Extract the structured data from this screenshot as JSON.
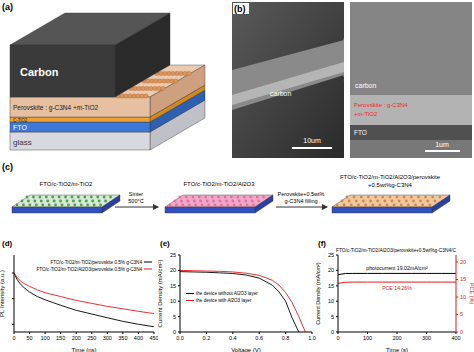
{
  "panels": {
    "a": {
      "label": "(a)",
      "layers": [
        "Carbon",
        "Perovskite : g-C3N4 +m-TiO2",
        "C-TiO2",
        "FTO",
        "glass"
      ]
    },
    "b": {
      "label": "(b)",
      "left": {
        "labels": [
          "carbon"
        ],
        "scale": "10um"
      },
      "right": {
        "labels": [
          "carbon",
          "Perovskite : g-C3N4",
          "+m-TiO2",
          "FTO"
        ],
        "scale": "1um"
      }
    },
    "c": {
      "label": "(c)",
      "steps": [
        "FTO/c-TiO2/m-TiO2",
        "FTO/c-TiO2/m-TiO2/Al2O3",
        "FTO/c-TiO2/m-TiO2/Al2O3/perovskite+0.5wt%g-C3N4"
      ],
      "arrows": [
        "Sinter 500°C",
        "Perovskite+0.5wt% g-C3N4 filling"
      ]
    }
  },
  "chart_data": [
    {
      "type": "line",
      "xlabel": "Time (ns)",
      "ylabel": "PL Intensity (a.u.)",
      "annotations": [
        "(d)"
      ],
      "log": "y",
      "tick_labels": "x",
      "legend": "upper right",
      "x": [
        0,
        10,
        20,
        30,
        50,
        75,
        100,
        150,
        200,
        250,
        300,
        350,
        400,
        450
      ],
      "xlim": [
        0,
        450
      ],
      "xticks": [
        0,
        50,
        100,
        150,
        200,
        250,
        300,
        350,
        400,
        450
      ],
      "ylim": [
        0.005,
        5
      ],
      "yticks": [
        0.01,
        0.1,
        1
      ],
      "series": [
        {
          "name": "FTO/c-TiO2/m-TiO2/perovskite:0.5% g-C3N4",
          "color": "#000000",
          "values": [
            1,
            0.55,
            0.38,
            0.28,
            0.18,
            0.12,
            0.09,
            0.055,
            0.035,
            0.025,
            0.018,
            0.013,
            0.01,
            0.008
          ]
        },
        {
          "name": "FTO/c-TiO2/m-TiO2/Al2O3/perovskite:0.5% g-C3N4",
          "color": "#e41a1c",
          "values": [
            1,
            0.65,
            0.5,
            0.4,
            0.3,
            0.22,
            0.17,
            0.12,
            0.085,
            0.065,
            0.05,
            0.04,
            0.032,
            0.026
          ]
        }
      ]
    },
    {
      "type": "line",
      "xlabel": "Voltage (V)",
      "ylabel": "Current Density (mA/cm²)",
      "annotations": [
        "(e)"
      ],
      "legend": "center left",
      "x": [
        0,
        0.1,
        0.2,
        0.3,
        0.4,
        0.5,
        0.6,
        0.7,
        0.75,
        0.8,
        0.85,
        0.9,
        0.95
      ],
      "xlim": [
        0,
        1
      ],
      "xticks": [
        {
          "value": 0,
          "label": "0.0"
        },
        0.2,
        0.4,
        0.6,
        0.8,
        {
          "value": 1,
          "label": "1.0"
        }
      ],
      "ylim": [
        0,
        25
      ],
      "yticks": [
        0,
        5,
        10,
        15,
        20,
        25
      ],
      "series": [
        {
          "name": "the device without Al2O3 layer",
          "color": "#000000",
          "values": [
            19.6,
            19.5,
            19.4,
            19.2,
            19,
            18.5,
            17.5,
            15.2,
            13,
            10,
            4.5,
            0,
            null
          ]
        },
        {
          "name": "the device with Al2O3 layer",
          "color": "#e41a1c",
          "values": [
            20,
            19.9,
            19.8,
            19.7,
            19.5,
            19.1,
            18.4,
            16.8,
            15.2,
            12.8,
            9.5,
            5,
            0
          ]
        }
      ]
    },
    {
      "type": "line",
      "xlabel": "Time (s)",
      "ylabel": "Current Density (mA/cm²)",
      "y2label": "PCE (%)",
      "annotations": [
        "(f)",
        "FTO/c-TiO2/m-TiO2/Al2O3/perovskite+0.5wt%g-C3N4/C"
      ],
      "x": [
        0,
        25,
        50,
        100,
        150,
        200,
        250,
        300,
        350,
        400
      ],
      "xlim": [
        0,
        400
      ],
      "xticks": [
        0,
        100,
        200,
        300,
        400
      ],
      "ylim": [
        0,
        25
      ],
      "yticks": [
        0,
        5,
        10,
        15,
        20,
        25
      ],
      "y2lim": [
        0,
        22
      ],
      "y2ticks": [
        0,
        5,
        10,
        15,
        20
      ],
      "series": [
        {
          "name": "photocurrent 19.02mA/cm²",
          "color": "#000000",
          "values": [
            18.6,
            19,
            19.02,
            19.02,
            19.02,
            19.02,
            19.02,
            19.02,
            19.02,
            19.02
          ]
        },
        {
          "name": "PCE 14.26%",
          "color": "#e41a1c",
          "axis": "y2",
          "values": [
            13.9,
            14.2,
            14.26,
            14.26,
            14.26,
            14.26,
            14.26,
            14.26,
            14.26,
            14.26
          ]
        }
      ]
    }
  ]
}
